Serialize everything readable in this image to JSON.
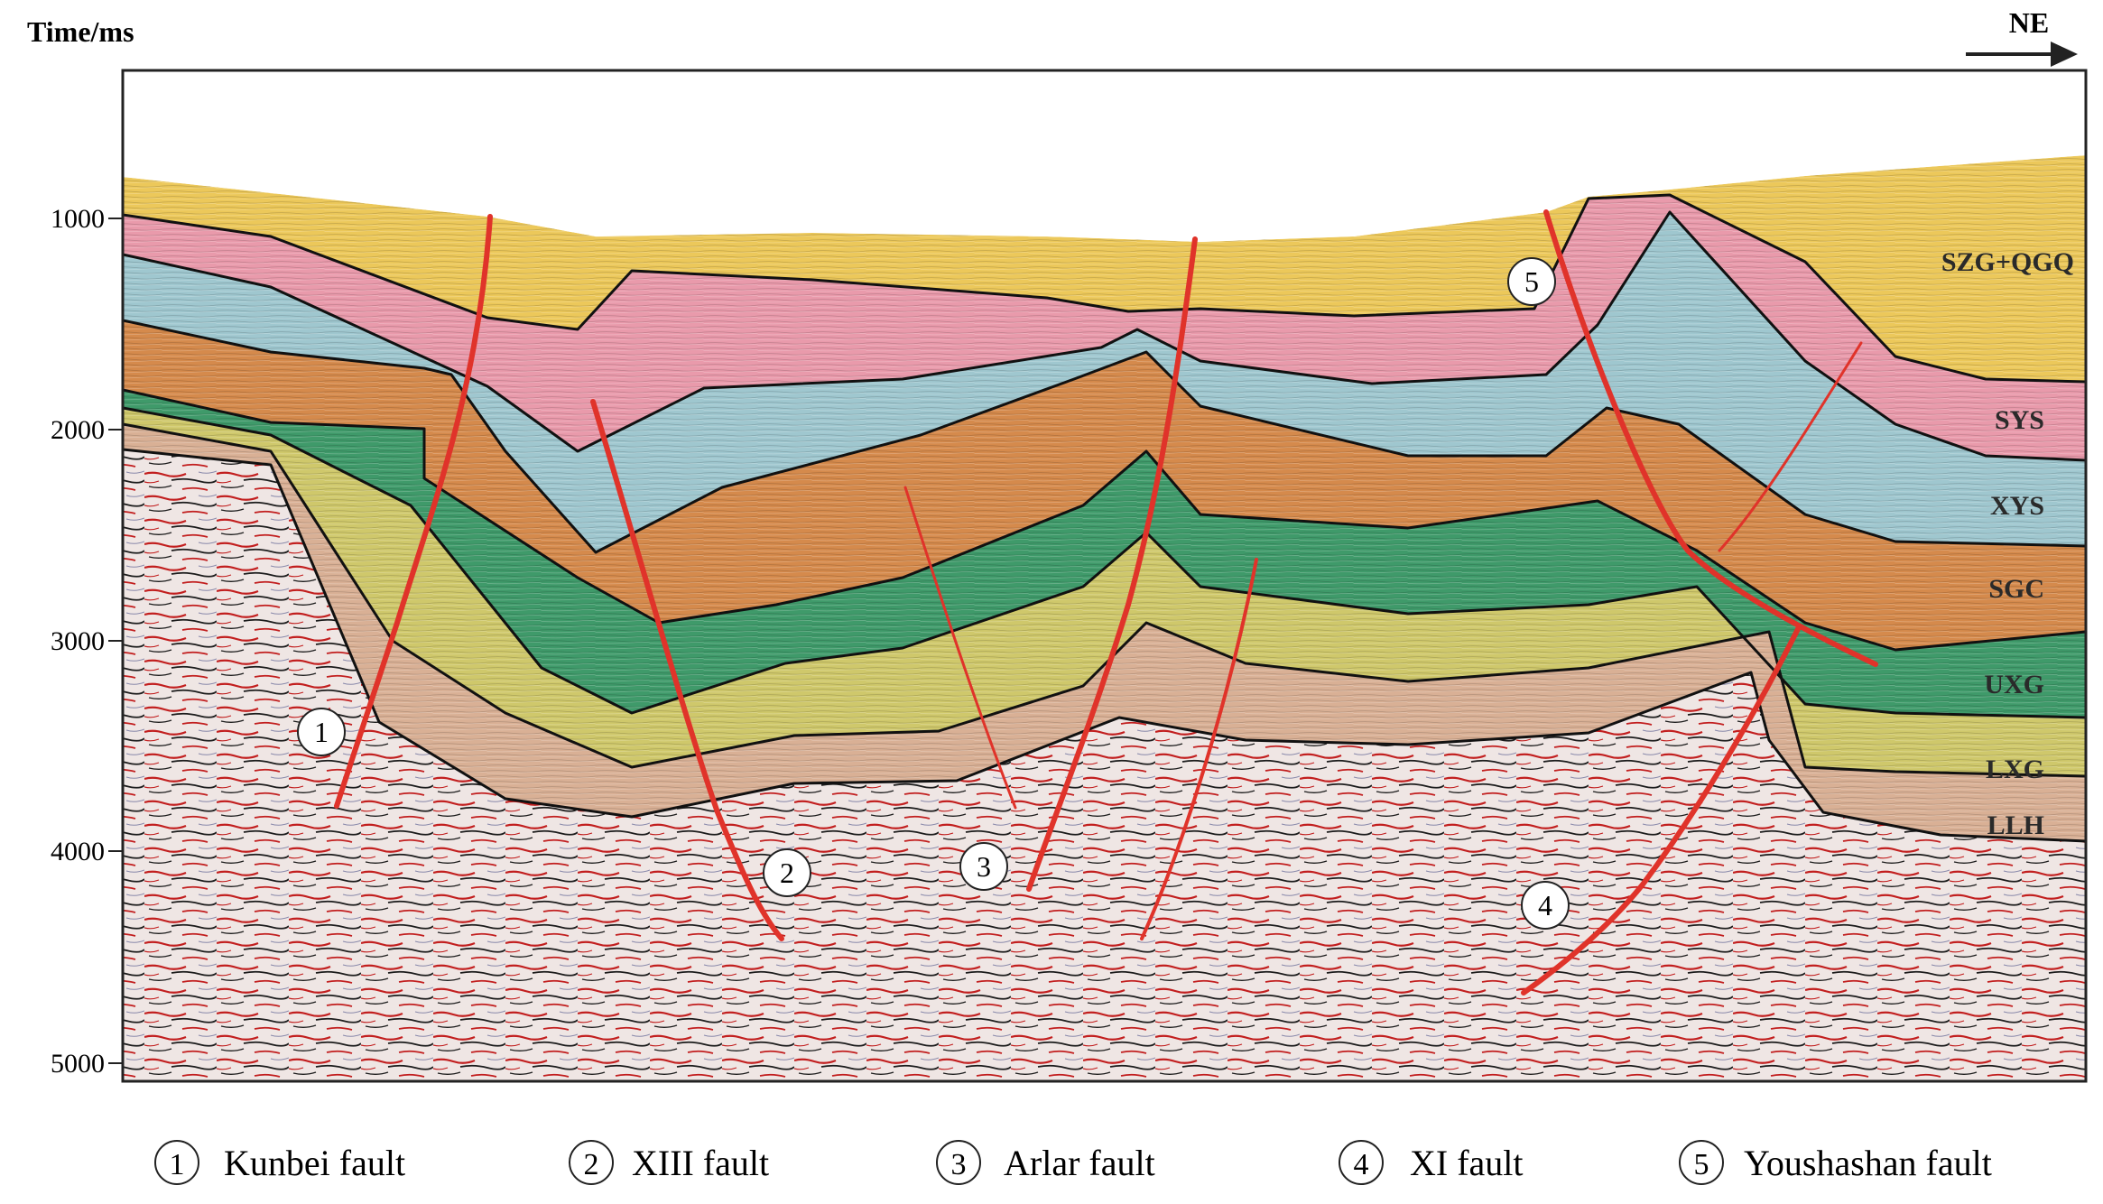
{
  "axis": {
    "title": "Time/ms",
    "ticks": [
      "1000",
      "2000",
      "3000",
      "4000",
      "5000"
    ]
  },
  "direction": {
    "label": "NE"
  },
  "layers": [
    {
      "id": "szg",
      "label": "SZG+QGQ",
      "color": "#ecc85a"
    },
    {
      "id": "sys",
      "label": "SYS",
      "color": "#e99aab"
    },
    {
      "id": "xys",
      "label": "XYS",
      "color": "#9fc7cf"
    },
    {
      "id": "sgc",
      "label": "SGC",
      "color": "#d58a4c"
    },
    {
      "id": "uxg",
      "label": "UXG",
      "color": "#3f9a6a"
    },
    {
      "id": "lxg",
      "label": "LXG",
      "color": "#cfc86b"
    },
    {
      "id": "llh",
      "label": "LLH",
      "color": "#d9b095"
    }
  ],
  "faults": [
    {
      "number": "1",
      "name": "Kunbei fault"
    },
    {
      "number": "2",
      "name": "XIII fault"
    },
    {
      "number": "3",
      "name": "Arlar fault"
    },
    {
      "number": "4",
      "name": "XI fault"
    },
    {
      "number": "5",
      "name": "Youshashan fault"
    }
  ],
  "colors": {
    "fault": "#e0332a",
    "horizon": "#111111",
    "basement": "#e9d9d6",
    "reflector": "#c21f1f"
  }
}
